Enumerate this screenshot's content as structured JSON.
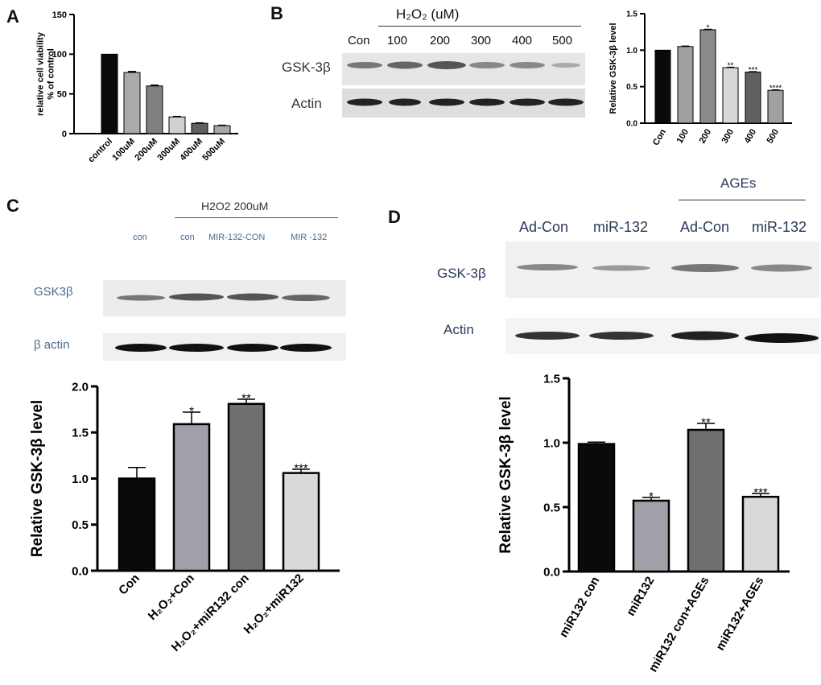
{
  "panels": {
    "A": {
      "label": "A"
    },
    "B": {
      "label": "B",
      "header": "H₂O₂ (uM)",
      "lanes": [
        "Con",
        "100",
        "200",
        "300",
        "400",
        "500"
      ],
      "rows": [
        "GSK-3β",
        "Actin"
      ]
    },
    "C": {
      "label": "C",
      "header": "H2O2   200uM",
      "lanes": [
        "con",
        "con",
        "MIR-132-CON",
        "MIR -132"
      ],
      "rows": [
        "GSK3β",
        "β actin"
      ]
    },
    "D": {
      "label": "D",
      "header": "AGEs",
      "lanes": [
        "Ad-Con",
        "miR-132",
        "Ad-Con",
        "miR-132"
      ],
      "rows": [
        "GSK-3β",
        "Actin"
      ]
    }
  },
  "colors": {
    "black": "#0a0a0a",
    "light": "#d9d9d9",
    "mid": "#9a9a9a",
    "dark": "#707070"
  },
  "chart_data": [
    {
      "id": "A",
      "type": "bar",
      "categories": [
        "control",
        "100uM",
        "200uM",
        "300uM",
        "400uM",
        "500uM"
      ],
      "values": [
        100,
        77,
        60,
        21,
        13,
        10
      ],
      "errors": [
        0,
        1.2,
        1,
        0.6,
        0.5,
        0.5
      ],
      "colors": [
        "#0a0a0a",
        "#aaaaaa",
        "#808080",
        "#d0d0d0",
        "#606060",
        "#a8a8a8"
      ],
      "ylabel": "relative cell viability\n% of control",
      "ylim": [
        0,
        150
      ],
      "yticks": [
        "0",
        "50",
        "100",
        "150"
      ],
      "annotations": [
        "",
        "",
        "",
        "",
        "",
        ""
      ]
    },
    {
      "id": "B",
      "type": "bar",
      "categories": [
        "Con",
        "100",
        "200",
        "300",
        "400",
        "500"
      ],
      "values": [
        1.0,
        1.05,
        1.28,
        0.76,
        0.7,
        0.45
      ],
      "errors": [
        0,
        0.005,
        0.005,
        0.005,
        0.005,
        0.005
      ],
      "colors": [
        "#0a0a0a",
        "#a0a0a0",
        "#8a8a8a",
        "#d8d8d8",
        "#606060",
        "#a0a0a0"
      ],
      "ylabel": "Relative GSK-3β level",
      "ylim": [
        0,
        1.5
      ],
      "yticks": [
        "0.0",
        "0.5",
        "1.0",
        "1.5"
      ],
      "annotations": [
        "",
        "",
        "*",
        "**",
        "***",
        "****"
      ]
    },
    {
      "id": "C",
      "type": "bar",
      "categories": [
        "Con",
        "H₂O₂+Con",
        "H₂O₂+miR132 con",
        "H₂O₂+miR132"
      ],
      "values": [
        1.0,
        1.59,
        1.81,
        1.06
      ],
      "errors": [
        0.12,
        0.13,
        0.05,
        0.04
      ],
      "colors": [
        "#0a0a0a",
        "#a0a0a8",
        "#707070",
        "#d9d9d9"
      ],
      "ylabel": "Relative GSK-3β level",
      "ylim": [
        0,
        2.0
      ],
      "yticks": [
        "0.0",
        "0.5",
        "1.0",
        "1.5",
        "2.0"
      ],
      "annotations": [
        "",
        "*",
        "**",
        "***"
      ]
    },
    {
      "id": "D",
      "type": "bar",
      "categories": [
        "miR132 con",
        "miR132",
        "miR132 con+AGEs",
        "miR132+AGEs"
      ],
      "values": [
        0.99,
        0.55,
        1.1,
        0.58
      ],
      "errors": [
        0.015,
        0.025,
        0.05,
        0.025
      ],
      "colors": [
        "#0a0a0a",
        "#a0a0a8",
        "#707070",
        "#d9d9d9"
      ],
      "ylabel": "Relative GSK-3β level",
      "ylim": [
        0,
        1.5
      ],
      "yticks": [
        "0.0",
        "0.5",
        "1.0",
        "1.5"
      ],
      "annotations": [
        "",
        "*",
        "**",
        "***"
      ]
    }
  ]
}
